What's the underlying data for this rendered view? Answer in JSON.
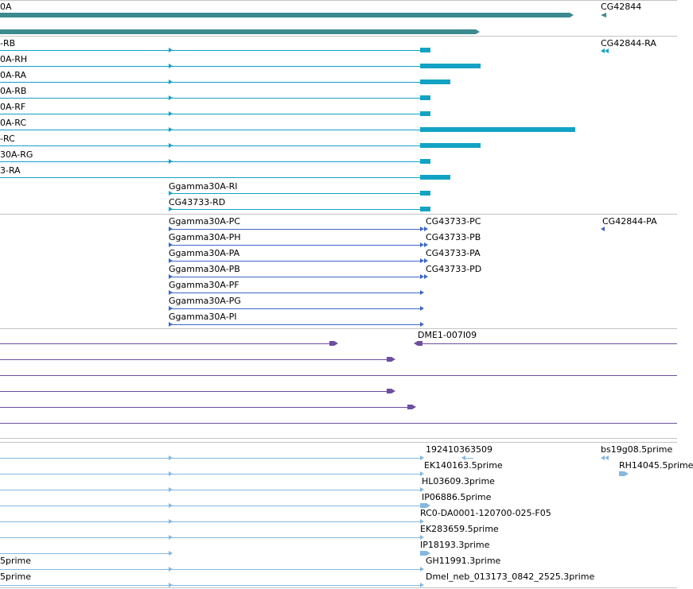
{
  "colors": {
    "gene": "#3a8a8f",
    "rna": "#12a3c4",
    "protein": "#3e67c9",
    "est_track": "#6c4fa0",
    "cdna": "#85b8e0",
    "separator": "#c4c4c4"
  },
  "tracks": {
    "gene_labels": [
      "0A",
      "CG42844"
    ],
    "rna_labels": [
      "-RB",
      "CG42844-RA",
      "0A-RH",
      "0A-RA",
      "0A-RB",
      "0A-RF",
      "0A-RC",
      "-RC",
      "30A-RG",
      "3-RA",
      "Ggamma30A-RI",
      "CG43733-RD"
    ],
    "protein_labels": [
      "Ggamma30A-PC",
      "CG43733-PC",
      "CG42844-PA",
      "Ggamma30A-PH",
      "CG43733-PB",
      "Ggamma30A-PA",
      "CG43733-PA",
      "Ggamma30A-PB",
      "CG43733-PD",
      "Ggamma30A-PF",
      "Ggamma30A-PG",
      "Ggamma30A-PI"
    ],
    "clone_labels": [
      "DME1-007I09"
    ],
    "cdna_labels": [
      "192410363509",
      "bs19g08.5prime",
      "EK140163.5prime",
      "RH14045.5prime",
      "HL03609.3prime",
      "IP06886.5prime",
      "RC0-DA0001-120700-025-F05",
      "EK283659.5prime",
      "IP18193.3prime",
      "5prime",
      "GH11991.3prime",
      "5prime",
      "Dmel_neb_013173_0842_2525.3prime"
    ]
  }
}
